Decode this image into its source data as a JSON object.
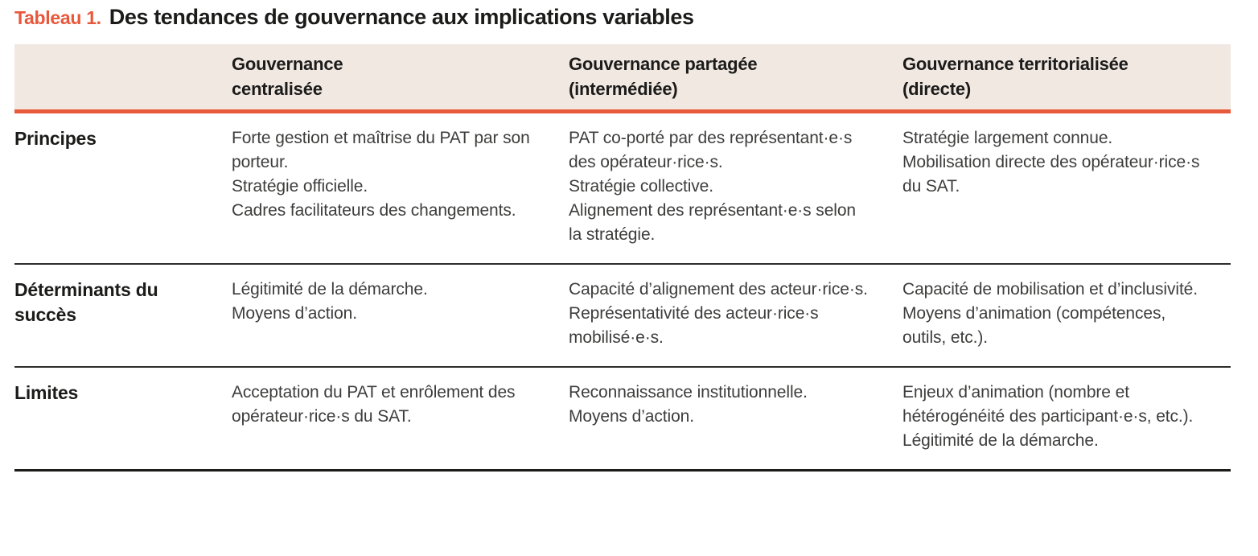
{
  "caption": {
    "label": "Tableau 1.",
    "text": "Des tendances de gouvernance aux implications variables"
  },
  "table": {
    "header": {
      "col2": "Gouvernance\ncentralisée",
      "col3": "Gouvernance partagée\n(intermédiée)",
      "col4": "Gouvernance territorialisée\n(directe)"
    },
    "rows": [
      {
        "label": "Principes",
        "col2": "Forte gestion et maîtrise du PAT par son porteur.\nStratégie officielle.\nCadres facilitateurs des changements.",
        "col3": "PAT co-porté par des représentant·e·s des opérateur·rice·s.\nStratégie collective.\nAlignement des représentant·e·s selon la stratégie.",
        "col4": "Stratégie largement connue.\nMobilisation directe des opérateur·rice·s du SAT."
      },
      {
        "label": "Déterminants du succès",
        "col2": "Légitimité de la démarche.\nMoyens d’action.",
        "col3": "Capacité d’alignement des acteur·rice·s.\nReprésentativité des acteur·rice·s mobilisé·e·s.",
        "col4": "Capacité de mobilisation et d’inclusivité.\nMoyens d’animation (compétences, outils, etc.)."
      },
      {
        "label": "Limites",
        "col2": "Acceptation du PAT et enrôlement des opérateur·rice·s du SAT.",
        "col3": "Reconnaissance institutionnelle.\nMoyens d’action.",
        "col4": "Enjeux d’animation (nombre et hétérogénéité des participant·e·s, etc.).\nLégitimité de la démarche."
      }
    ]
  },
  "colors": {
    "accent_orange": "#e8583b",
    "header_background": "#f1e8e2",
    "heading_text": "#1b1b1a",
    "body_text": "#3d3d3c"
  }
}
